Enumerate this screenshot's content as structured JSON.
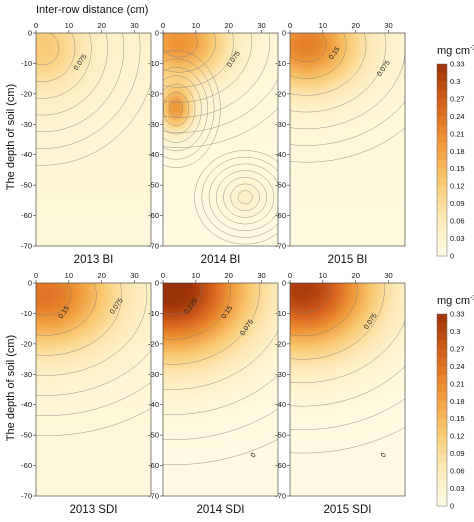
{
  "chart_data": {
    "type": "heatmap",
    "xlabel": "Inter-row distance (cm)",
    "ylabel": "The depth of soil (cm)",
    "xlim": [
      0,
      35
    ],
    "ylim": [
      -70,
      0
    ],
    "x_ticks": [
      "0",
      "10",
      "20",
      "30"
    ],
    "y_ticks": [
      "0",
      "-10",
      "-20",
      "-30",
      "-40",
      "-50",
      "-60",
      "-70"
    ],
    "colorbar": {
      "title": "mg cm",
      "title_sup": "-3",
      "ticks": [
        "0.33",
        "0.3",
        "0.27",
        "0.24",
        "0.21",
        "0.18",
        "0.15",
        "0.12",
        "0.09",
        "0.06",
        "0.03",
        "0"
      ],
      "range": [
        0,
        0.33
      ],
      "colors": [
        "#fffde8",
        "#fde9b6",
        "#f9c66c",
        "#ee9436",
        "#d4601b",
        "#9c3208"
      ]
    },
    "panels": [
      {
        "label": "2013  BI",
        "sources": [
          {
            "x": 2,
            "y": -5,
            "amp": 0.09,
            "sx": 9,
            "sy": 10
          }
        ],
        "base": 0.035,
        "contour_labels": [
          {
            "text": "0.075",
            "x": 14,
            "y": -10
          }
        ]
      },
      {
        "label": "2014  BI",
        "sources": [
          {
            "x": 4,
            "y": -25,
            "amp": 0.17,
            "sx": 3.5,
            "sy": 5
          },
          {
            "x": 5,
            "y": -3,
            "amp": 0.18,
            "sx": 10,
            "sy": 9
          },
          {
            "x": 25,
            "y": -54,
            "amp": 0.03,
            "sx": 4,
            "sy": 4
          }
        ],
        "base": 0.02,
        "contour_labels": [
          {
            "text": "0.075",
            "x": 22,
            "y": -9
          }
        ]
      },
      {
        "label": "2015  BI",
        "sources": [
          {
            "x": 5,
            "y": -4,
            "amp": 0.2,
            "sx": 11,
            "sy": 10
          }
        ],
        "base": 0.025,
        "contour_labels": [
          {
            "text": "0.15",
            "x": 14,
            "y": -7
          },
          {
            "text": "0.075",
            "x": 29,
            "y": -12
          }
        ]
      },
      {
        "label": "2013  SDI",
        "sources": [
          {
            "x": 3,
            "y": -4,
            "amp": 0.21,
            "sx": 14,
            "sy": 12
          }
        ],
        "base": 0.03,
        "contour_labels": [
          {
            "text": "0.15",
            "x": 9,
            "y": -10
          },
          {
            "text": "0.075",
            "x": 25,
            "y": -8
          }
        ]
      },
      {
        "label": "2014  SDI",
        "sources": [
          {
            "x": 3,
            "y": -2,
            "amp": 0.33,
            "sx": 16,
            "sy": 15
          }
        ],
        "base": 0.015,
        "contour_labels": [
          {
            "text": "0.225",
            "x": 9,
            "y": -8
          },
          {
            "text": "0.15",
            "x": 20,
            "y": -10
          },
          {
            "text": "0.075",
            "x": 26,
            "y": -15
          },
          {
            "text": "0",
            "x": 28,
            "y": -57
          }
        ]
      },
      {
        "label": "2015  SDI",
        "sources": [
          {
            "x": 4,
            "y": -2,
            "amp": 0.3,
            "sx": 15,
            "sy": 14
          }
        ],
        "base": 0.015,
        "contour_labels": [
          {
            "text": "0.075",
            "x": 25,
            "y": -13
          },
          {
            "text": "0",
            "x": 29,
            "y": -57
          }
        ]
      }
    ]
  }
}
